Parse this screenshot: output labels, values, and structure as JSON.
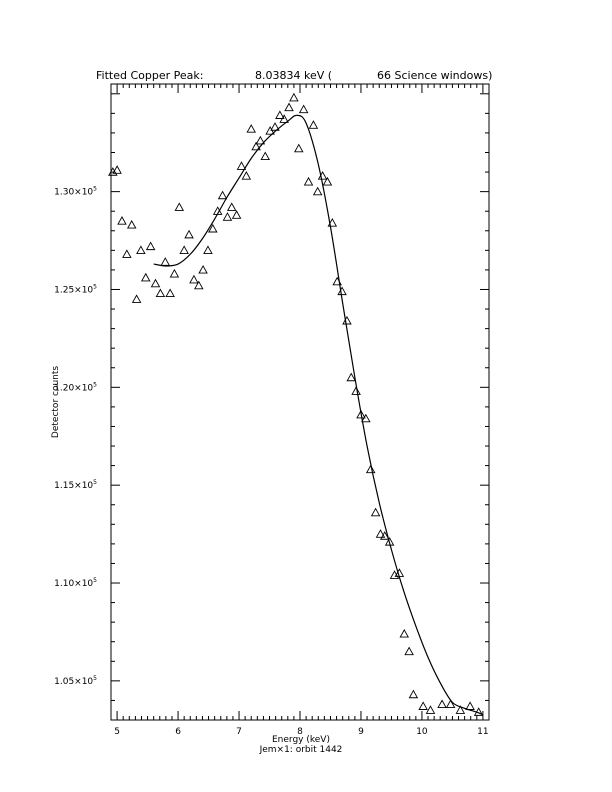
{
  "chart_data": {
    "type": "scatter",
    "title": {
      "prefix": "Fitted Copper Peak:",
      "value": "8.03834 keV (",
      "suffix": "66 Science windows)"
    },
    "xlabel": "Energy (keV)",
    "subtitle": "Jem×1: orbit 1442",
    "ylabel": "Detector counts",
    "xlim": [
      4.9,
      11.1
    ],
    "ylim": [
      103000,
      135500
    ],
    "x_ticks": [
      {
        "value": 5,
        "label": "5"
      },
      {
        "value": 6,
        "label": "6"
      },
      {
        "value": 7,
        "label": "7"
      },
      {
        "value": 8,
        "label": "8"
      },
      {
        "value": 9,
        "label": "9"
      },
      {
        "value": 10,
        "label": "10"
      },
      {
        "value": 11,
        "label": "11"
      }
    ],
    "y_ticks": [
      {
        "value": 105000,
        "mantissa": "1.05×10",
        "exp": "5"
      },
      {
        "value": 110000,
        "mantissa": "1.10×10",
        "exp": "5"
      },
      {
        "value": 115000,
        "mantissa": "1.15×10",
        "exp": "5"
      },
      {
        "value": 120000,
        "mantissa": "1.20×10",
        "exp": "5"
      },
      {
        "value": 125000,
        "mantissa": "1.25×10",
        "exp": "5"
      },
      {
        "value": 130000,
        "mantissa": "1.30×10",
        "exp": "5"
      }
    ],
    "grid": false,
    "marker": "open-triangle",
    "series": [
      {
        "kind": "data",
        "x": [
          4.93,
          5.0,
          5.08,
          5.16,
          5.24,
          5.32,
          5.39,
          5.47,
          5.55,
          5.63,
          5.71,
          5.79,
          5.87,
          5.94,
          6.02,
          6.1,
          6.18,
          6.26,
          6.34,
          6.41,
          6.49,
          6.57,
          6.65,
          6.73,
          6.81,
          6.88,
          6.96,
          7.04,
          7.12,
          7.2,
          7.28,
          7.35,
          7.43,
          7.51,
          7.59,
          7.67,
          7.74,
          7.82,
          7.9,
          7.98,
          8.06,
          8.14,
          8.22,
          8.29,
          8.37,
          8.45,
          8.53,
          8.61,
          8.69,
          8.77,
          8.84,
          8.92,
          9.0,
          9.08,
          9.16,
          9.24,
          9.32,
          9.39,
          9.47,
          9.55,
          9.63,
          9.71,
          9.79,
          9.86,
          10.02,
          10.14,
          10.33,
          10.47,
          10.63,
          10.79,
          10.93
        ],
        "y": [
          131000,
          131100,
          128500,
          126800,
          128300,
          124500,
          127000,
          125600,
          127200,
          125300,
          124800,
          126400,
          124800,
          125800,
          129200,
          127000,
          127800,
          125500,
          125200,
          126000,
          127000,
          128100,
          129000,
          129800,
          128700,
          129200,
          128800,
          131300,
          130800,
          133200,
          132300,
          132600,
          131800,
          133100,
          133300,
          133900,
          133700,
          134300,
          134800,
          132200,
          134200,
          130500,
          133400,
          130000,
          130800,
          130500,
          128400,
          125400,
          124900,
          123400,
          120500,
          119800,
          118600,
          118400,
          115800,
          113600,
          112500,
          112400,
          112100,
          110400,
          110500,
          107400,
          106500,
          104300,
          103700,
          103500,
          103800,
          103800,
          103500,
          103700,
          103400
        ]
      },
      {
        "kind": "fit",
        "x": [
          5.6,
          5.8,
          6.0,
          6.2,
          6.4,
          6.6,
          6.8,
          7.0,
          7.2,
          7.4,
          7.6,
          7.8,
          7.95,
          8.1,
          8.3,
          8.5,
          8.7,
          8.9,
          9.1,
          9.3,
          9.5,
          9.7,
          9.9,
          10.1,
          10.3,
          10.5,
          10.7,
          10.9,
          10.98
        ],
        "y": [
          126300,
          126200,
          126300,
          126800,
          127600,
          128600,
          129700,
          130700,
          131700,
          132500,
          133100,
          133600,
          133900,
          133500,
          131400,
          128200,
          124300,
          120500,
          117000,
          114100,
          111700,
          109600,
          107800,
          106200,
          104900,
          103900,
          103600,
          103400,
          103300
        ]
      }
    ]
  }
}
